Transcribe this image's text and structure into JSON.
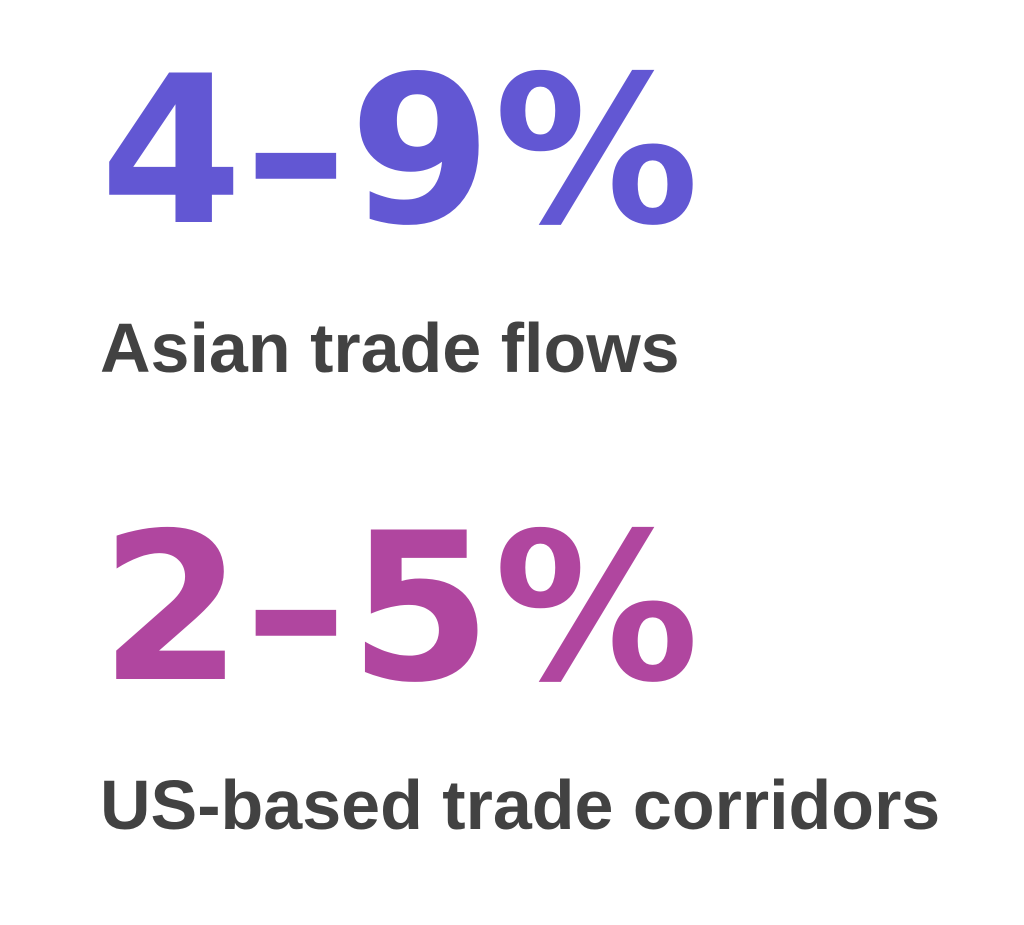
{
  "stats": [
    {
      "value": "4–9%",
      "label": "Asian trade flows",
      "color": "#6257d3"
    },
    {
      "value": "2–5%",
      "label": "US-based trade corridors",
      "color": "#b0469f"
    }
  ],
  "label_color": "#424242",
  "background_color": "#ffffff"
}
